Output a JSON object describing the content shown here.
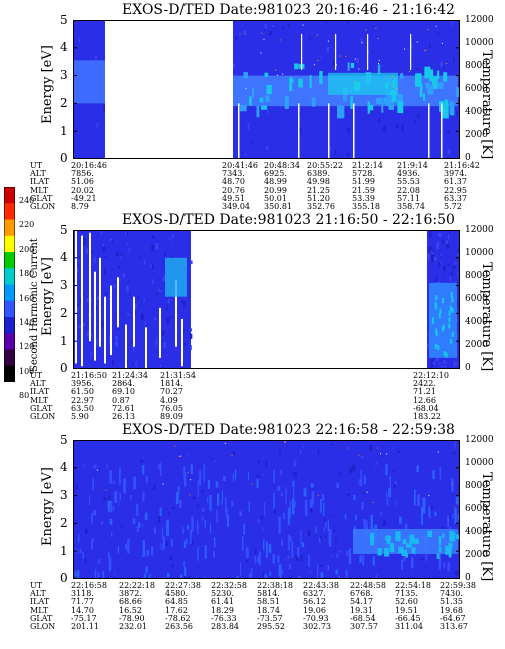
{
  "panels": [
    {
      "title": "EXOS-D/TED   Date:981023  20:16:46 - 21:16:42",
      "ylabel": "Energy [eV]",
      "y2label": "Temperature [K]",
      "yticks": [
        "0",
        "1",
        "2",
        "3",
        "4",
        "5"
      ],
      "y2ticks": [
        "0",
        "2000",
        "4000",
        "6000",
        "8000",
        "10000",
        "12000"
      ],
      "eph_labels": [
        "UT",
        "ALT",
        "ILAT",
        "MLT",
        "GLAT",
        "GLON"
      ],
      "eph_cols": [
        [
          "20:16:46",
          "7856.",
          "51.06",
          "20.02",
          "-49.21",
          "8.79"
        ],
        [
          "20:41:46",
          "7343.",
          "48.70",
          "20.76",
          "49.51",
          "349.04"
        ],
        [
          "20:48:34",
          "6925.",
          "48.99",
          "20.99",
          "50.01",
          "350.81"
        ],
        [
          "20:55:22",
          "6389.",
          "49.98",
          "21.25",
          "51.20",
          "352.76"
        ],
        [
          "21:2:14",
          "5728.",
          "51.99",
          "21.59",
          "53.39",
          "355.18"
        ],
        [
          "21:9:14",
          "4936.",
          "55.53",
          "22.08",
          "57.11",
          "358.74"
        ],
        [
          "21:16:42",
          "3974.",
          "61.37",
          "22.95",
          "63.37",
          "5.72"
        ]
      ]
    },
    {
      "title": "EXOS-D/TED   Date:981023  21:16:50 - 22:16:50",
      "ylabel": "Energy [eV]",
      "y2label": "Temperature [K]",
      "yticks": [
        "0",
        "1",
        "2",
        "3",
        "4",
        "5"
      ],
      "y2ticks": [
        "0",
        "2000",
        "4000",
        "6000",
        "8000",
        "10000",
        "12000"
      ],
      "eph_labels": [
        "UT",
        "ALT",
        "ILAT",
        "MLT",
        "GLAT",
        "GLON"
      ],
      "eph_cols": [
        [
          "21:16:50",
          "3956.",
          "61.50",
          "22.97",
          "63.50",
          "5.90"
        ],
        [
          "21:24:34",
          "2864.",
          "69.10",
          "0.87",
          "72.61",
          "26.13"
        ],
        [
          "21:31:54",
          "1814.",
          "70.27",
          "4.09",
          "76.05",
          "89.09"
        ],
        [
          "22:12:10",
          "2422.",
          "71.21",
          "12.66",
          "-68.04",
          "183.22"
        ]
      ]
    },
    {
      "title": "EXOS-D/TED   Date:981023  22:16:58 - 22:59:38",
      "ylabel": "Energy [eV]",
      "y2label": "Temperature [K]",
      "yticks": [
        "0",
        "1",
        "2",
        "3",
        "4",
        "5"
      ],
      "y2ticks": [
        "0",
        "2000",
        "4000",
        "6000",
        "8000",
        "10000",
        "12000"
      ],
      "eph_labels": [
        "UT",
        "ALT",
        "ILAT",
        "MLT",
        "GLAT",
        "GLON"
      ],
      "eph_cols": [
        [
          "22:16:58",
          "3118.",
          "71.77",
          "14.70",
          "-75.17",
          "201.11"
        ],
        [
          "22:22:18",
          "3872.",
          "68.66",
          "16.52",
          "-78.90",
          "232.01"
        ],
        [
          "22:27:38",
          "4580.",
          "64.85",
          "17.62",
          "-78.62",
          "263.56"
        ],
        [
          "22:32:58",
          "5230.",
          "61.41",
          "18.29",
          "-76.33",
          "283.84"
        ],
        [
          "22:38:18",
          "5814.",
          "58.51",
          "18.74",
          "-73.57",
          "295.52"
        ],
        [
          "22:43:38",
          "6327.",
          "56.12",
          "19.06",
          "-70.93",
          "302.73"
        ],
        [
          "22:48:58",
          "6768.",
          "54.17",
          "19.31",
          "-68.54",
          "307.57"
        ],
        [
          "22:54:18",
          "7135.",
          "52.60",
          "19.51",
          "-66.45",
          "311.04"
        ],
        [
          "22:59:38",
          "7430.",
          "51.35",
          "19.68",
          "-64.67",
          "313.67"
        ]
      ]
    }
  ],
  "colorbar": {
    "label": "Second Harmonic Current",
    "ticks": [
      "240",
      "220",
      "200",
      "180",
      "160",
      "140",
      "120",
      "100",
      "80"
    ],
    "colors": [
      "#cc0000",
      "#ff2a00",
      "#ff9900",
      "#ffff00",
      "#00cc00",
      "#00cccc",
      "#0099ff",
      "#3355ff",
      "#1a22cc",
      "#5a00aa",
      "#330044",
      "#000000"
    ]
  },
  "chart_data": [
    {
      "type": "heatmap",
      "title": "EXOS-D/TED   Date:981023  20:16:46 - 21:16:42",
      "ylabel": "Energy [eV]",
      "y2label": "Temperature [K]",
      "ylim": [
        0,
        5
      ],
      "y2lim": [
        0,
        12000
      ],
      "x_range": [
        "20:16:46",
        "21:16:42"
      ],
      "data_gap": [
        "20:21:30",
        "20:41:46"
      ],
      "band_energy_eV": [
        2.0,
        3.5
      ]
    },
    {
      "type": "heatmap",
      "title": "EXOS-D/TED   Date:981023  21:16:50 - 22:16:50",
      "ylabel": "Energy [eV]",
      "y2label": "Temperature [K]",
      "ylim": [
        0,
        5
      ],
      "y2lim": [
        0,
        12000
      ],
      "x_range": [
        "21:16:50",
        "22:16:50"
      ],
      "data_gap": [
        "21:36:00",
        "22:12:10"
      ]
    },
    {
      "type": "heatmap",
      "title": "EXOS-D/TED   Date:981023  22:16:58 - 22:59:38",
      "ylabel": "Energy [eV]",
      "y2label": "Temperature [K]",
      "ylim": [
        0,
        5
      ],
      "y2lim": [
        0,
        12000
      ],
      "x_range": [
        "22:16:58",
        "22:59:38"
      ]
    }
  ]
}
